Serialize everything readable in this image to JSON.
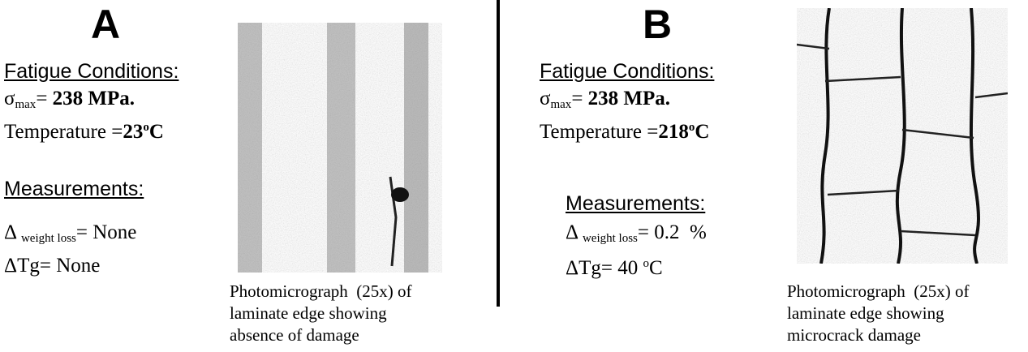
{
  "panels": [
    {
      "label": "A",
      "conditions_heading": "Fatigue Conditions:",
      "sigma_symbol": "σ",
      "sigma_sub": "max",
      "sigma_eq": "= ",
      "sigma_value": "238 MPa.",
      "temp_label": "Temperature =",
      "temp_value": "23",
      "temp_sup": "o",
      "temp_unit": "C",
      "measurements_heading": "Measurements:",
      "delta": "Δ ",
      "weight_sub": "weight loss",
      "weight_value": "= None",
      "tg_text": "ΔTg= None",
      "caption": [
        "Photomicrograph  (25x) of",
        "laminate edge showing",
        "absence of damage"
      ]
    },
    {
      "label": "B",
      "conditions_heading": "Fatigue Conditions:",
      "sigma_symbol": "σ",
      "sigma_sub": "max",
      "sigma_eq": "= ",
      "sigma_value": "238 MPa.",
      "temp_label": "Temperature =",
      "temp_value": "218",
      "temp_sup": "o",
      "temp_unit": "C",
      "measurements_heading": "Measurements:",
      "delta": "Δ ",
      "weight_sub": "weight loss",
      "weight_value": "= 0.2  %",
      "tg_text": "ΔTg= 40 ",
      "tg_sup": "o",
      "tg_unit": "C",
      "caption": [
        "Photomicrograph  (25x) of",
        "laminate edge showing",
        "microcrack damage"
      ]
    }
  ]
}
